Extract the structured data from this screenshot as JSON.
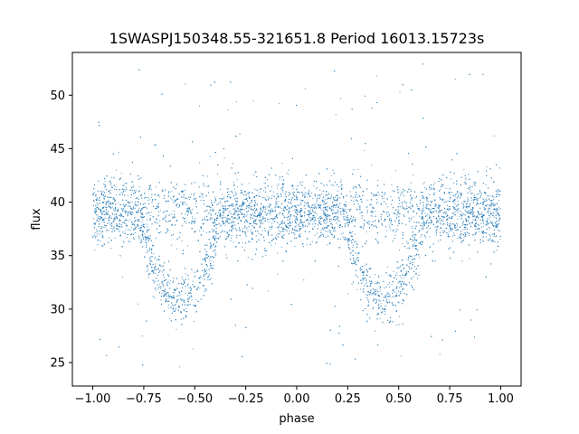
{
  "chart_data": {
    "type": "scatter",
    "title": "1SWASPJ150348.55-321651.8 Period 16013.15723s",
    "xlabel": "phase",
    "ylabel": "flux",
    "xlim": [
      -1.1,
      1.1
    ],
    "ylim": [
      22.8,
      54.0
    ],
    "xticks": [
      -1.0,
      -0.75,
      -0.5,
      -0.25,
      0.0,
      0.25,
      0.5,
      0.75,
      1.0
    ],
    "xtick_labels": [
      "−1.00",
      "−0.75",
      "−0.50",
      "−0.25",
      "0.00",
      "0.25",
      "0.50",
      "0.75",
      "1.00"
    ],
    "yticks": [
      25,
      30,
      35,
      40,
      45,
      50
    ],
    "ytick_labels": [
      "25",
      "30",
      "35",
      "40",
      "45",
      "50"
    ],
    "grid": false,
    "legend": "none",
    "marker_color": "#1f77b4",
    "series": [
      {
        "description_of_shape": "phase-folded light curve, repeated over two cycles",
        "x_range": [
          -1.0,
          1.0
        ],
        "baseline_flux": 39.0,
        "baseline_band": [
          36.0,
          42.5
        ],
        "eclipses": [
          {
            "center_phase": -0.57,
            "depth_flux": 31.0,
            "width_phase": 0.38
          },
          {
            "center_phase": 0.43,
            "depth_flux": 31.0,
            "width_phase": 0.38
          }
        ],
        "outlier_range": [
          24.5,
          53.0
        ]
      }
    ]
  }
}
